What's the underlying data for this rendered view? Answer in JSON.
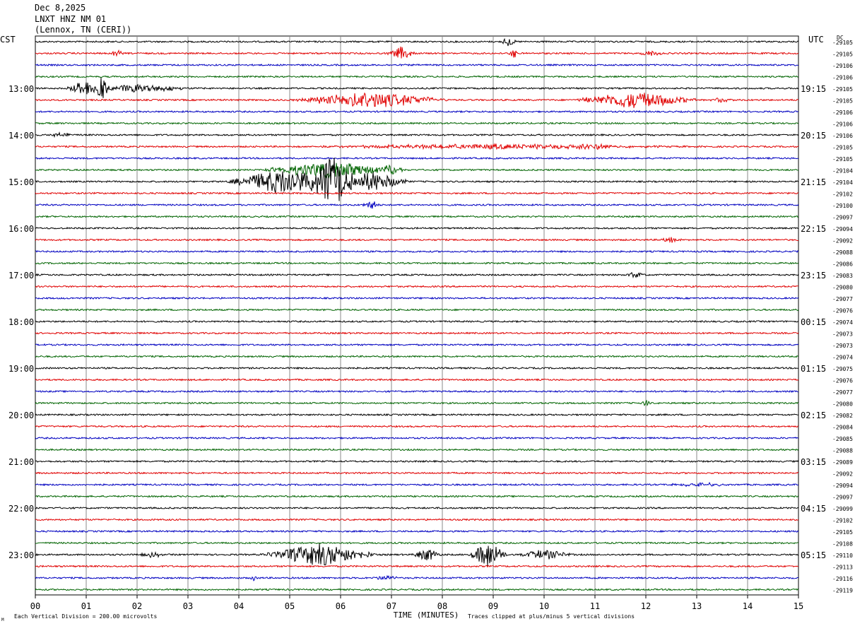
{
  "header": {
    "date": "Dec 8,2025",
    "station": "LNXT HNZ NM 01",
    "location": "(Lennox, TN (CERI))"
  },
  "chart_data": {
    "type": "line",
    "title": "Dec 8,2025 LNXT HNZ NM 01 (Lennox, TN (CERI))",
    "left_axis_label": "CST",
    "right_axis_label": "UTC",
    "dc_label": "DC",
    "xlabel": "TIME (MINUTES)",
    "x_ticks": [
      "00",
      "01",
      "02",
      "03",
      "04",
      "05",
      "06",
      "07",
      "08",
      "09",
      "10",
      "11",
      "12",
      "13",
      "14",
      "15"
    ],
    "xlim": [
      0,
      15
    ],
    "trace_colors": [
      "#000000",
      "#e00000",
      "#0000c0",
      "#006400"
    ],
    "left_hour_labels": [
      "13:00",
      "14:00",
      "15:00",
      "16:00",
      "17:00",
      "18:00",
      "19:00",
      "20:00",
      "21:00",
      "22:00",
      "23:00"
    ],
    "right_hour_labels": [
      "19:15",
      "20:15",
      "21:15",
      "22:15",
      "23:15",
      "00:15",
      "01:15",
      "02:15",
      "03:15",
      "04:15",
      "05:15"
    ],
    "first_labeled_row": 4,
    "dc_offsets": [
      "-29105",
      "-29105",
      "-29106",
      "-29106",
      "-29105",
      "-29105",
      "-29106",
      "-29106",
      "-29106",
      "-29105",
      "-29105",
      "-29104",
      "-29104",
      "-29102",
      "-29100",
      "-29097",
      "-29094",
      "-29092",
      "-29088",
      "-29086",
      "-29083",
      "-29080",
      "-29077",
      "-29076",
      "-29074",
      "-29073",
      "-29073",
      "-29074",
      "-29075",
      "-29076",
      "-29077",
      "-29080",
      "-29082",
      "-29084",
      "-29085",
      "-29088",
      "-29089",
      "-29092",
      "-29094",
      "-29097",
      "-29099",
      "-29102",
      "-29105",
      "-29108",
      "-29110",
      "-29113",
      "-29116",
      "-29119"
    ],
    "events": [
      {
        "row": 0,
        "minute": 9.3,
        "amp": 0.6,
        "dur": 0.15
      },
      {
        "row": 1,
        "minute": 1.6,
        "amp": 0.4,
        "dur": 0.15
      },
      {
        "row": 1,
        "minute": 7.2,
        "amp": 0.8,
        "dur": 0.3
      },
      {
        "row": 1,
        "minute": 9.4,
        "amp": 0.7,
        "dur": 0.1
      },
      {
        "row": 1,
        "minute": 12.1,
        "amp": 0.3,
        "dur": 0.3
      },
      {
        "row": 4,
        "minute": 0.95,
        "amp": 1.0,
        "dur": 0.35
      },
      {
        "row": 4,
        "minute": 1.3,
        "amp": 1.4,
        "dur": 0.2
      },
      {
        "row": 4,
        "minute": 2.0,
        "amp": 0.5,
        "dur": 1.2
      },
      {
        "row": 5,
        "minute": 6.6,
        "amp": 1.0,
        "dur": 1.6
      },
      {
        "row": 5,
        "minute": 11.8,
        "amp": 1.0,
        "dur": 1.3
      },
      {
        "row": 5,
        "minute": 13.5,
        "amp": 0.3,
        "dur": 0.3
      },
      {
        "row": 8,
        "minute": 0.5,
        "amp": 0.3,
        "dur": 0.3
      },
      {
        "row": 9,
        "minute": 9.0,
        "amp": 0.3,
        "dur": 4.0
      },
      {
        "row": 9,
        "minute": 11.0,
        "amp": 0.5,
        "dur": 0.4
      },
      {
        "row": 11,
        "minute": 5.8,
        "amp": 1.0,
        "dur": 1.5
      },
      {
        "row": 11,
        "minute": 7.0,
        "amp": 0.6,
        "dur": 0.3
      },
      {
        "row": 12,
        "minute": 5.8,
        "amp": 3.5,
        "dur": 0.5
      },
      {
        "row": 12,
        "minute": 4.9,
        "amp": 1.6,
        "dur": 1.2
      },
      {
        "row": 12,
        "minute": 6.6,
        "amp": 1.2,
        "dur": 0.8
      },
      {
        "row": 14,
        "minute": 6.6,
        "amp": 0.6,
        "dur": 0.2
      },
      {
        "row": 17,
        "minute": 12.5,
        "amp": 0.3,
        "dur": 0.3
      },
      {
        "row": 20,
        "minute": 11.8,
        "amp": 0.4,
        "dur": 0.2
      },
      {
        "row": 31,
        "minute": 12.0,
        "amp": 0.4,
        "dur": 0.1
      },
      {
        "row": 38,
        "minute": 13.0,
        "amp": 0.3,
        "dur": 0.6
      },
      {
        "row": 44,
        "minute": 5.6,
        "amp": 1.4,
        "dur": 1.2
      },
      {
        "row": 44,
        "minute": 7.7,
        "amp": 0.8,
        "dur": 0.3
      },
      {
        "row": 44,
        "minute": 8.9,
        "amp": 1.6,
        "dur": 0.4
      },
      {
        "row": 44,
        "minute": 10.0,
        "amp": 0.6,
        "dur": 0.6
      },
      {
        "row": 44,
        "minute": 2.3,
        "amp": 0.3,
        "dur": 0.3
      },
      {
        "row": 46,
        "minute": 4.3,
        "amp": 0.4,
        "dur": 0.1
      },
      {
        "row": 46,
        "minute": 6.9,
        "amp": 0.3,
        "dur": 0.3
      }
    ]
  },
  "footer": {
    "scale_note": "Each Vertical Division =  200.00 microvolts",
    "clip_note": "Traces clipped at plus/minus 5 vertical divisions",
    "corner_mark": "M"
  }
}
